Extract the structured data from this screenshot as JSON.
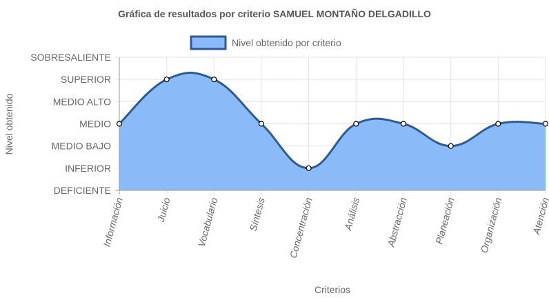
{
  "chart_data": {
    "type": "area",
    "title": "Gráfica de resultados por criterio SAMUEL MONTAÑO DELGADILLO",
    "xlabel": "Criterios",
    "ylabel": "Nivel obtenido",
    "levels": [
      "DEFICIENTE",
      "INFERIOR",
      "MEDIO BAJO",
      "MEDIO",
      "MEDIO ALTO",
      "SUPERIOR",
      "SOBRESALIENTE"
    ],
    "ylim": [
      0,
      6
    ],
    "categories": [
      "Información",
      "Juicio",
      "Vocabulario",
      "Síntesis",
      "Concentración",
      "Análisis",
      "Abstracción",
      "Planeación",
      "Organización",
      "Atención"
    ],
    "series": [
      {
        "name": "Nivel obtenido por criterio",
        "values": [
          3,
          5,
          5,
          3,
          1,
          3,
          3,
          2,
          3,
          3
        ],
        "line_color": "#2f5b94",
        "fill_color": "#8bbaf8"
      }
    ],
    "legend_position": "top-center",
    "grid": true
  }
}
